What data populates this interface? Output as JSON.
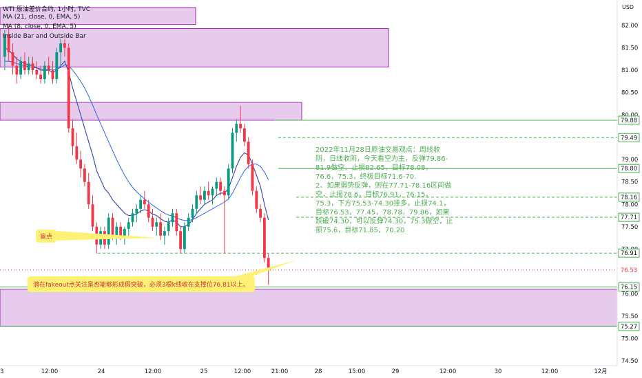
{
  "header": {
    "symbol_line": "WTI 原油差价合约, 1小时, TVC",
    "ma1": "MA (21, close, 0, EMA, 5)",
    "ma2": "MA (8, close, 0, EMA, 5)",
    "indicator": "Inside Bar and Outside Bar"
  },
  "currency": "USD",
  "note": "2022年11月28日原油交易观点：周线收阴，日线收阴，今天看空为主，反弹79.86-81.9做空，止损82.65，目标78.08，76.6，75.3，终极目标71.6-70.\n2、如果弱势反弹，则在77.71-78.16区间做空，止损78.6，目标76.91，76.15，75.3，下方75.53-74.30挂多，止损74.1，目标76.53，77.45，78.78，79.86，如果跌破74.30，可以反弹74.30，75.3做空，止损75.6，目标71.85，70.20",
  "callout_gap": "盲点",
  "callout_fakeout": "潜在fakeout点关注是否能够形成假突破，必须3根k线收在支撑位76.81以上。",
  "colors": {
    "up": "#089981",
    "down": "#f23645",
    "zone_fill": "#e1bee7",
    "zone_border": "#9c27b0",
    "level_line": "#4caf50",
    "ma_fast": "#3f51b5",
    "ma_slow": "#2962ff",
    "callout_bg": "#fff176"
  },
  "chart_data": {
    "type": "candlestick",
    "ylim": [
      74.5,
      82.4
    ],
    "y_ticks": [
      82.0,
      81.5,
      81.0,
      80.5,
      80.0,
      79.5,
      79.0,
      78.5,
      78.0,
      77.5,
      77.0,
      76.5,
      76.0,
      75.5,
      75.0,
      74.5
    ],
    "x_tick_labels": [
      "3",
      "12:00",
      "24",
      "12:00",
      "25",
      "12:00",
      "21:00",
      "28",
      "15:00",
      "29",
      "12:00",
      "30",
      "12:00",
      "12月"
    ],
    "price_labels": [
      {
        "value": "79.88",
        "style": "green"
      },
      {
        "value": "79.49",
        "style": "green"
      },
      {
        "value": "78.80",
        "style": "green"
      },
      {
        "value": "78.16",
        "style": "green"
      },
      {
        "value": "77.71",
        "style": "green"
      },
      {
        "value": "76.91",
        "style": "green"
      },
      {
        "value": "76.53",
        "style": "red"
      },
      {
        "value": "76.15",
        "style": "green"
      },
      {
        "value": "75.27",
        "style": "green"
      }
    ],
    "levels": [
      {
        "value": 79.88,
        "style": "solid"
      },
      {
        "value": 79.49,
        "style": "dashed"
      },
      {
        "value": 78.8,
        "style": "solid"
      },
      {
        "value": 78.16,
        "style": "dashed"
      },
      {
        "value": 77.71,
        "style": "dashed"
      },
      {
        "value": 76.91,
        "style": "dashed"
      },
      {
        "value": 76.53,
        "style": "dotted-red"
      },
      {
        "value": 76.15,
        "style": "solid"
      },
      {
        "value": 75.27,
        "style": "solid"
      }
    ],
    "zones": [
      {
        "y_top": 82.4,
        "y_bottom": 82.02,
        "x_end_bar": 34
      },
      {
        "y_top": 81.93,
        "y_bottom": 81.07,
        "x_end_bar": 52
      },
      {
        "y_top": 80.28,
        "y_bottom": 79.88,
        "x_end_bar": 40
      },
      {
        "y_top": 76.1,
        "y_bottom": 75.27,
        "x_end_bar": 110
      }
    ],
    "candles": [
      {
        "o": 81.3,
        "h": 81.9,
        "l": 81.0,
        "c": 81.8
      },
      {
        "o": 81.8,
        "h": 82.0,
        "l": 81.2,
        "c": 81.4
      },
      {
        "o": 81.4,
        "h": 81.6,
        "l": 80.9,
        "c": 81.1
      },
      {
        "o": 81.1,
        "h": 81.3,
        "l": 80.7,
        "c": 80.9
      },
      {
        "o": 80.9,
        "h": 81.3,
        "l": 80.8,
        "c": 81.2
      },
      {
        "o": 81.2,
        "h": 81.4,
        "l": 80.9,
        "c": 81.0
      },
      {
        "o": 81.0,
        "h": 81.3,
        "l": 80.9,
        "c": 81.15
      },
      {
        "o": 81.15,
        "h": 81.3,
        "l": 80.9,
        "c": 81.0
      },
      {
        "o": 81.0,
        "h": 81.2,
        "l": 80.8,
        "c": 80.9
      },
      {
        "o": 80.9,
        "h": 81.1,
        "l": 80.7,
        "c": 80.8
      },
      {
        "o": 80.8,
        "h": 81.2,
        "l": 80.7,
        "c": 81.1
      },
      {
        "o": 81.1,
        "h": 81.3,
        "l": 80.9,
        "c": 81.0
      },
      {
        "o": 81.0,
        "h": 81.2,
        "l": 80.7,
        "c": 80.8
      },
      {
        "o": 80.8,
        "h": 81.5,
        "l": 80.7,
        "c": 81.4
      },
      {
        "o": 81.4,
        "h": 81.7,
        "l": 81.1,
        "c": 81.6
      },
      {
        "o": 81.6,
        "h": 81.7,
        "l": 81.3,
        "c": 81.5
      },
      {
        "o": 81.5,
        "h": 81.6,
        "l": 79.6,
        "c": 79.7
      },
      {
        "o": 79.7,
        "h": 79.9,
        "l": 79.1,
        "c": 79.3
      },
      {
        "o": 79.3,
        "h": 79.6,
        "l": 78.9,
        "c": 79.0
      },
      {
        "o": 79.0,
        "h": 79.2,
        "l": 78.6,
        "c": 78.8
      },
      {
        "o": 78.8,
        "h": 78.9,
        "l": 78.4,
        "c": 78.5
      },
      {
        "o": 78.5,
        "h": 78.7,
        "l": 77.9,
        "c": 78.0
      },
      {
        "o": 78.0,
        "h": 78.2,
        "l": 77.4,
        "c": 77.5
      },
      {
        "o": 77.5,
        "h": 77.6,
        "l": 76.9,
        "c": 77.1
      },
      {
        "o": 77.1,
        "h": 77.5,
        "l": 77.0,
        "c": 77.4
      },
      {
        "o": 77.4,
        "h": 77.5,
        "l": 77.0,
        "c": 77.1
      },
      {
        "o": 77.1,
        "h": 77.8,
        "l": 77.0,
        "c": 77.7
      },
      {
        "o": 77.7,
        "h": 77.8,
        "l": 77.2,
        "c": 77.3
      },
      {
        "o": 77.3,
        "h": 77.6,
        "l": 77.1,
        "c": 77.5
      },
      {
        "o": 77.5,
        "h": 77.6,
        "l": 77.2,
        "c": 77.3
      },
      {
        "o": 77.3,
        "h": 77.5,
        "l": 77.1,
        "c": 77.45
      },
      {
        "o": 77.45,
        "h": 77.7,
        "l": 77.3,
        "c": 77.6
      },
      {
        "o": 77.6,
        "h": 77.9,
        "l": 77.5,
        "c": 77.8
      },
      {
        "o": 77.8,
        "h": 78.0,
        "l": 77.6,
        "c": 77.9
      },
      {
        "o": 77.9,
        "h": 78.2,
        "l": 77.8,
        "c": 78.1
      },
      {
        "o": 78.1,
        "h": 78.3,
        "l": 77.9,
        "c": 78.0
      },
      {
        "o": 78.0,
        "h": 78.1,
        "l": 77.6,
        "c": 77.7
      },
      {
        "o": 77.7,
        "h": 77.9,
        "l": 77.4,
        "c": 77.5
      },
      {
        "o": 77.5,
        "h": 77.7,
        "l": 77.3,
        "c": 77.6
      },
      {
        "o": 77.6,
        "h": 77.8,
        "l": 77.2,
        "c": 77.3
      },
      {
        "o": 77.3,
        "h": 77.5,
        "l": 77.1,
        "c": 77.4
      },
      {
        "o": 77.4,
        "h": 77.7,
        "l": 77.3,
        "c": 77.6
      },
      {
        "o": 77.6,
        "h": 77.9,
        "l": 77.5,
        "c": 77.8
      },
      {
        "o": 77.8,
        "h": 77.9,
        "l": 77.3,
        "c": 77.4
      },
      {
        "o": 77.4,
        "h": 77.5,
        "l": 76.9,
        "c": 77.0
      },
      {
        "o": 77.0,
        "h": 77.6,
        "l": 76.9,
        "c": 77.5
      },
      {
        "o": 77.5,
        "h": 77.8,
        "l": 77.4,
        "c": 77.7
      },
      {
        "o": 77.7,
        "h": 78.0,
        "l": 77.6,
        "c": 77.9
      },
      {
        "o": 77.9,
        "h": 78.3,
        "l": 77.8,
        "c": 78.2
      },
      {
        "o": 78.2,
        "h": 78.4,
        "l": 78.0,
        "c": 78.1
      },
      {
        "o": 78.1,
        "h": 78.4,
        "l": 78.0,
        "c": 78.3
      },
      {
        "o": 78.3,
        "h": 78.5,
        "l": 78.1,
        "c": 78.2
      },
      {
        "o": 78.2,
        "h": 78.4,
        "l": 78.0,
        "c": 78.35
      },
      {
        "o": 78.35,
        "h": 78.6,
        "l": 78.2,
        "c": 78.5
      },
      {
        "o": 78.5,
        "h": 78.6,
        "l": 78.2,
        "c": 78.3
      },
      {
        "o": 78.3,
        "h": 78.4,
        "l": 76.9,
        "c": 78.2
      },
      {
        "o": 78.2,
        "h": 78.9,
        "l": 78.1,
        "c": 78.8
      },
      {
        "o": 78.8,
        "h": 79.7,
        "l": 78.7,
        "c": 79.6
      },
      {
        "o": 79.6,
        "h": 79.9,
        "l": 79.4,
        "c": 79.8
      },
      {
        "o": 79.8,
        "h": 80.2,
        "l": 79.6,
        "c": 79.7
      },
      {
        "o": 79.7,
        "h": 79.8,
        "l": 79.3,
        "c": 79.4
      },
      {
        "o": 79.4,
        "h": 79.5,
        "l": 78.8,
        "c": 78.9
      },
      {
        "o": 78.9,
        "h": 79.0,
        "l": 78.2,
        "c": 78.3
      },
      {
        "o": 78.3,
        "h": 78.4,
        "l": 77.8,
        "c": 77.9
      },
      {
        "o": 77.9,
        "h": 78.0,
        "l": 77.6,
        "c": 77.7
      },
      {
        "o": 77.7,
        "h": 77.8,
        "l": 76.7,
        "c": 76.8
      },
      {
        "o": 76.8,
        "h": 76.9,
        "l": 76.2,
        "c": 76.53
      }
    ],
    "ma_fast": [
      81.5,
      81.45,
      81.35,
      81.25,
      81.2,
      81.15,
      81.12,
      81.1,
      81.05,
      81.0,
      81.0,
      81.0,
      80.95,
      81.0,
      81.1,
      81.2,
      80.95,
      80.6,
      80.3,
      80.0,
      79.7,
      79.4,
      79.1,
      78.75,
      78.55,
      78.35,
      78.25,
      78.1,
      78.0,
      77.9,
      77.8,
      77.75,
      77.75,
      77.78,
      77.85,
      77.88,
      77.85,
      77.78,
      77.75,
      77.68,
      77.62,
      77.6,
      77.65,
      77.6,
      77.5,
      77.5,
      77.55,
      77.65,
      77.8,
      77.9,
      78.0,
      78.05,
      78.1,
      78.2,
      78.25,
      78.25,
      78.35,
      78.6,
      78.85,
      79.05,
      79.15,
      79.1,
      78.9,
      78.65,
      78.4,
      78.0,
      77.65
    ],
    "ma_slow": [
      81.2,
      81.2,
      81.18,
      81.15,
      81.12,
      81.1,
      81.08,
      81.06,
      81.05,
      81.03,
      81.02,
      81.02,
      81.0,
      81.02,
      81.06,
      81.12,
      81.1,
      81.0,
      80.88,
      80.75,
      80.6,
      80.42,
      80.22,
      80.0,
      79.8,
      79.6,
      79.4,
      79.2,
      79.0,
      78.82,
      78.65,
      78.5,
      78.38,
      78.28,
      78.2,
      78.12,
      78.05,
      77.98,
      77.92,
      77.86,
      77.8,
      77.76,
      77.74,
      77.7,
      77.66,
      77.64,
      77.64,
      77.66,
      77.7,
      77.75,
      77.8,
      77.85,
      77.9,
      77.95,
      78.0,
      78.05,
      78.12,
      78.25,
      78.42,
      78.6,
      78.75,
      78.85,
      78.9,
      78.9,
      78.85,
      78.72,
      78.55
    ]
  }
}
